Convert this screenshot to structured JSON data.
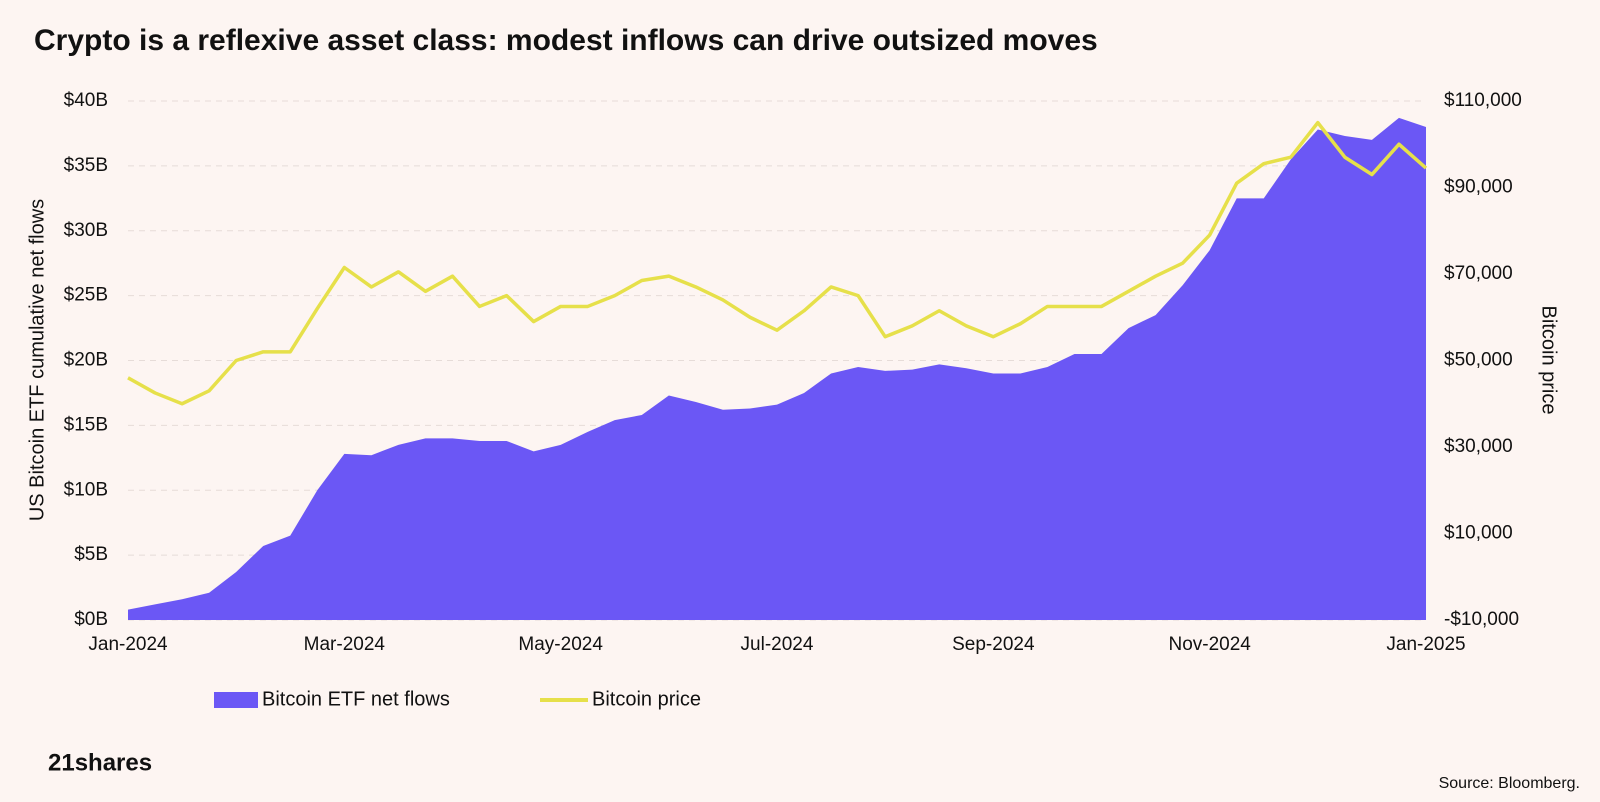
{
  "chart_data": {
    "type": "combo",
    "title": "Crypto is a reflexive asset class: modest inflows can drive outsized moves",
    "categories": [
      "Jan-2024",
      null,
      null,
      null,
      null,
      null,
      null,
      null,
      "Mar-2024",
      null,
      null,
      null,
      null,
      null,
      null,
      null,
      "May-2024",
      null,
      null,
      null,
      null,
      null,
      null,
      null,
      "Jul-2024",
      null,
      null,
      null,
      null,
      null,
      null,
      null,
      "Sep-2024",
      null,
      null,
      null,
      null,
      null,
      null,
      null,
      "Nov-2024",
      null,
      null,
      null,
      null,
      null,
      null,
      null,
      "Jan-2025"
    ],
    "series": [
      {
        "name": "Bitcoin ETF net flows",
        "type": "area",
        "color": "#6b57f5",
        "values": [
          0.8,
          1.2,
          1.6,
          2.1,
          3.7,
          5.7,
          6.5,
          10,
          12.8,
          12.7,
          13.5,
          14.0,
          14.0,
          13.8,
          13.8,
          13.0,
          13.5,
          14.5,
          15.4,
          15.8,
          17.3,
          16.8,
          16.2,
          16.3,
          16.6,
          17.5,
          19.0,
          19.5,
          19.2,
          19.3,
          19.7,
          19.4,
          19.0,
          19.0,
          19.5,
          20.5,
          20.5,
          22.5,
          23.5,
          25.8,
          28.5,
          32.5,
          32.5,
          35.5,
          37.8,
          37.3,
          37.0,
          38.7,
          38.0
        ]
      },
      {
        "name": "Bitcoin price",
        "type": "line",
        "axis": "y2",
        "color": "#e6e04a",
        "values": [
          46000,
          42500,
          40000,
          43000,
          50000,
          52000,
          52000,
          62000,
          71500,
          67000,
          70500,
          66000,
          69500,
          62500,
          65000,
          59000,
          62500,
          62500,
          65000,
          68500,
          69500,
          67000,
          64000,
          60000,
          57000,
          61500,
          67000,
          65000,
          55500,
          58000,
          61500,
          58000,
          55500,
          58500,
          62500,
          62500,
          62500,
          66000,
          69500,
          72500,
          79000,
          91000,
          95500,
          97000,
          105000,
          97000,
          93000,
          100000,
          94500
        ]
      }
    ],
    "ylabel": "US Bitcoin ETF cumulative net flows",
    "ylim": [
      0,
      40
    ],
    "yticks": [
      {
        "value": 0,
        "label": "$0B"
      },
      {
        "value": 5,
        "label": "$5B"
      },
      {
        "value": 10,
        "label": "$10B"
      },
      {
        "value": 15,
        "label": "$15B"
      },
      {
        "value": 20,
        "label": "$20B"
      },
      {
        "value": 25,
        "label": "$25B"
      },
      {
        "value": 30,
        "label": "$30B"
      },
      {
        "value": 35,
        "label": "$35B"
      },
      {
        "value": 40,
        "label": "$40B"
      }
    ],
    "y2label": "Bitcoin price",
    "y2lim": [
      -10000,
      110000
    ],
    "y2ticks": [
      {
        "value": -10000,
        "label": "-$10,000"
      },
      {
        "value": 10000,
        "label": "$10,000"
      },
      {
        "value": 30000,
        "label": "$30,000"
      },
      {
        "value": 50000,
        "label": "$50,000"
      },
      {
        "value": 70000,
        "label": "$70,000"
      },
      {
        "value": 90000,
        "label": "$90,000"
      },
      {
        "value": 110000,
        "label": "$110,000"
      }
    ],
    "grid": true,
    "brand": "21shares",
    "source": "Source: Bloomberg."
  }
}
